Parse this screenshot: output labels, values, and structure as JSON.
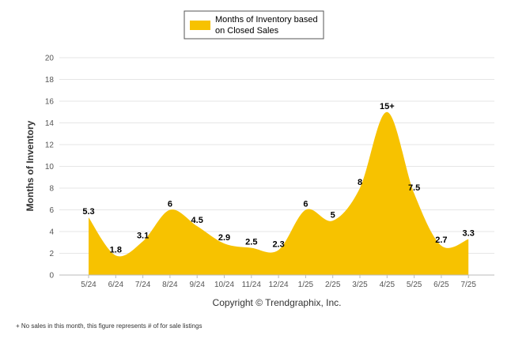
{
  "chart_data": {
    "type": "area",
    "categories": [
      "5/24",
      "6/24",
      "7/24",
      "8/24",
      "9/24",
      "10/24",
      "11/24",
      "12/24",
      "1/25",
      "2/25",
      "3/25",
      "4/25",
      "5/25",
      "6/25",
      "7/25"
    ],
    "series": [
      {
        "name": "Months of Inventory based on Closed Sales",
        "values": [
          5.3,
          1.8,
          3.1,
          6,
          4.5,
          2.9,
          2.5,
          2.3,
          6,
          5,
          8,
          15,
          7.5,
          2.7,
          3.3
        ],
        "labels": [
          "5.3",
          "1.8",
          "3.1",
          "6",
          "4.5",
          "2.9",
          "2.5",
          "2.3",
          "6",
          "5",
          "8",
          "15+",
          "7.5",
          "2.7",
          "3.3"
        ]
      }
    ],
    "ylabel": "Months of Inventory",
    "ylim": [
      0,
      20
    ],
    "yticks": [
      0,
      2,
      4,
      6,
      8,
      10,
      12,
      14,
      16,
      18,
      20
    ],
    "grid": true,
    "legend": {
      "position": "top-center",
      "lines": [
        "Months of Inventory based",
        "on Closed Sales"
      ]
    },
    "colors": {
      "fill": "#F7C200",
      "grid": "#e6e6e6",
      "axis": "#bbbbbb"
    }
  },
  "copyright": "Copyright © Trendgraphix, Inc.",
  "footnote": "+ No sales in this month, this figure represents # of for sale listings"
}
